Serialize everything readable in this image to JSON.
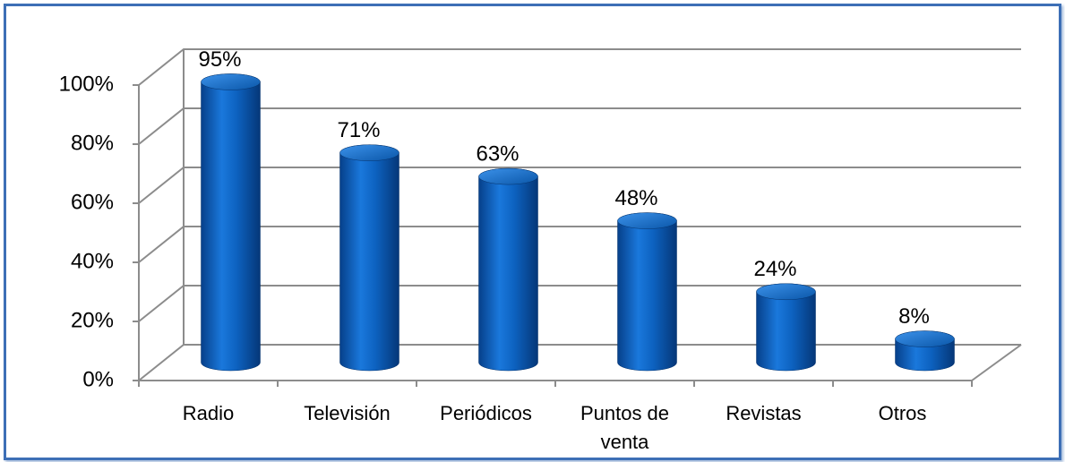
{
  "chart_data": {
    "type": "bar3d",
    "categories": [
      "Radio",
      "Televisión",
      "Periódicos",
      "Puntos de venta",
      "Revistas",
      "Otros"
    ],
    "values": [
      95,
      71,
      63,
      48,
      24,
      8
    ],
    "value_labels": [
      "95%",
      "71%",
      "63%",
      "48%",
      "24%",
      "8%"
    ],
    "color": "#0b63c4",
    "ylim": [
      0,
      100
    ],
    "yticks": [
      {
        "value": 0,
        "label": "0%"
      },
      {
        "value": 20,
        "label": "20%"
      },
      {
        "value": 40,
        "label": "40%"
      },
      {
        "value": 60,
        "label": "60%"
      },
      {
        "value": 80,
        "label": "80%"
      },
      {
        "value": 100,
        "label": "100%"
      }
    ],
    "grid": true
  }
}
